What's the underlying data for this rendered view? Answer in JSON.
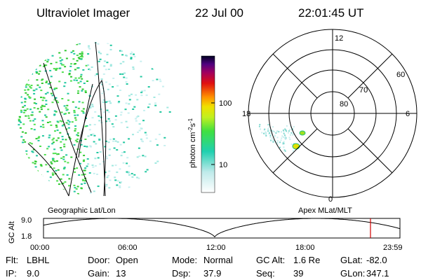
{
  "header": {
    "title": "Ultraviolet Imager",
    "date": "22 Jul 00",
    "time": "22:01:45 UT"
  },
  "colorbar": {
    "label": "photon cm",
    "exp1": "-2",
    "label2": "s",
    "exp2": "-1",
    "ticks": [
      "100",
      "10"
    ]
  },
  "polar": {
    "hours": [
      "12",
      "6",
      "0",
      "18"
    ],
    "latitudes": [
      "60",
      "70",
      "80"
    ]
  },
  "panels": {
    "left": "Geographic Lat/Lon",
    "right": "Apex MLat/MLT"
  },
  "altitude": {
    "ylabel": "GC Alt",
    "yticks": [
      "9.0",
      "1.8"
    ],
    "xticks": [
      "00:00",
      "06:00",
      "12:00",
      "18:00",
      "23:59"
    ]
  },
  "info": [
    [
      {
        "label": "Flt:",
        "value": "LBHL"
      },
      {
        "label": "Door:",
        "value": "Open"
      },
      {
        "label": "Mode:",
        "value": "Normal"
      },
      {
        "label": "GC Alt:",
        "value": "1.6 Re"
      },
      {
        "label": "GLat:",
        "value": "-82.0"
      }
    ],
    [
      {
        "label": "IP:",
        "value": "9.0"
      },
      {
        "label": "Gain:",
        "value": "13"
      },
      {
        "label": "Dsp:",
        "value": "37.9"
      },
      {
        "label": "Seq:",
        "value": "39"
      },
      {
        "label": "GLon:",
        "value": "347.1"
      }
    ]
  ]
}
